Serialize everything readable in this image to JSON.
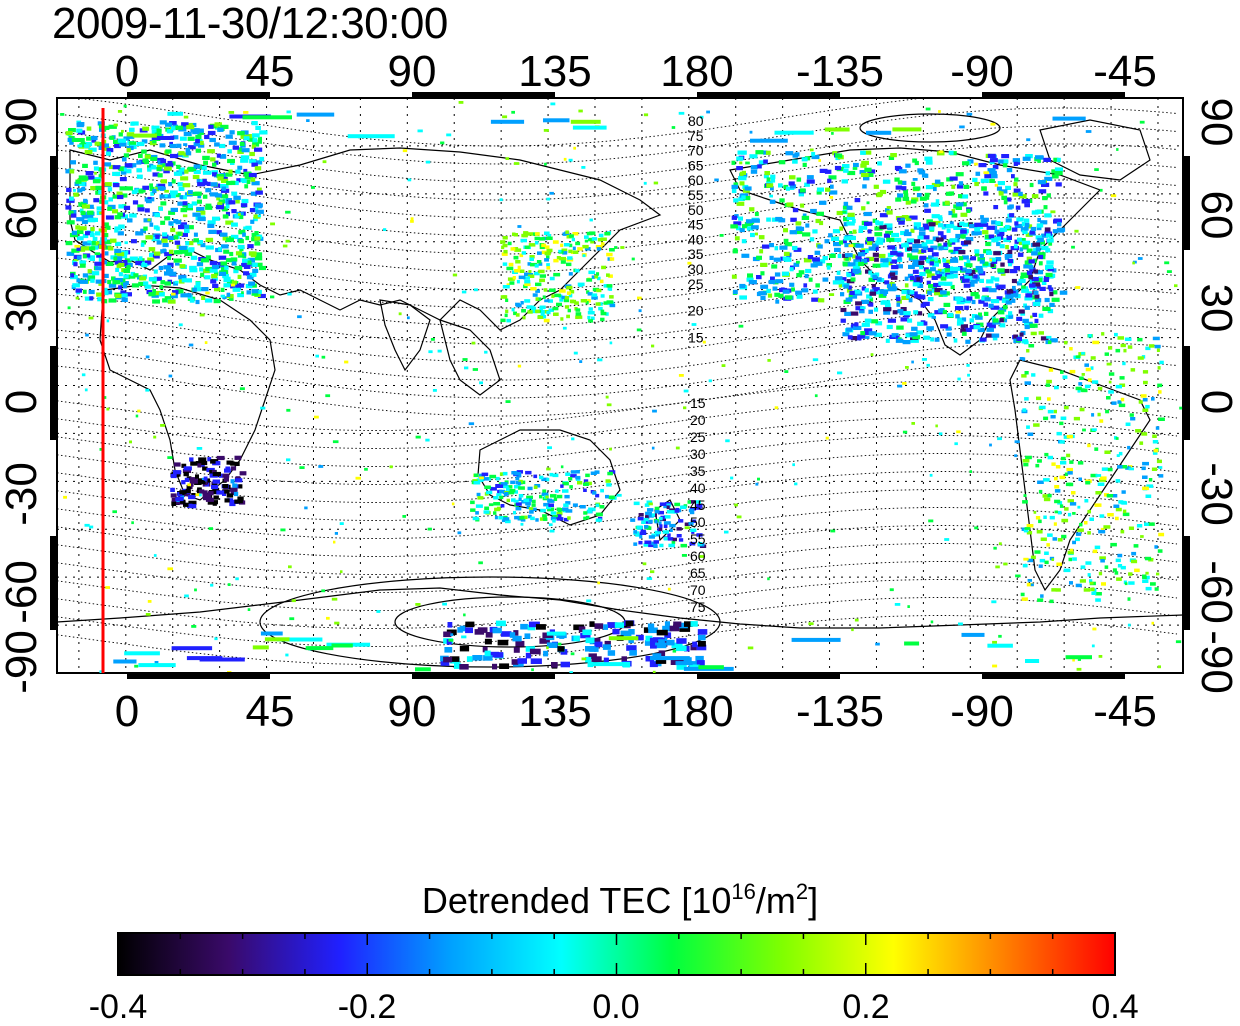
{
  "title": "2009-11-30/12:30:00",
  "map": {
    "lon_labels_top": [
      "0",
      "45",
      "90",
      "135",
      "180",
      "-135",
      "-90",
      "-45"
    ],
    "lon_labels_bottom": [
      "0",
      "45",
      "90",
      "135",
      "180",
      "-135",
      "-90",
      "-45"
    ],
    "lat_labels_left": [
      "90",
      "60",
      "30",
      "0",
      "-30",
      "-60",
      "-90"
    ],
    "lat_labels_right": [
      "90",
      "60",
      "30",
      "0",
      "-30",
      "-60",
      "-90"
    ],
    "contour_labels_north": [
      "80",
      "75",
      "70",
      "65",
      "60",
      "55",
      "50",
      "45",
      "40",
      "35",
      "30",
      "25",
      "20",
      "15"
    ],
    "contour_labels_south": [
      "15",
      "20",
      "25",
      "30",
      "35",
      "40",
      "45",
      "50",
      "55",
      "60",
      "65",
      "70",
      "75"
    ],
    "marker_line_color": "#ff0000",
    "grid": "dotted"
  },
  "colorbar": {
    "title_main": "Detrended TEC  [10",
    "title_exp": "16",
    "title_mid": "/m",
    "title_exp2": "2",
    "title_end": "]",
    "ticks": [
      "-0.4",
      "-0.2",
      "0.0",
      "0.2",
      "0.4"
    ],
    "min": -0.4,
    "max": 0.4,
    "colormap": [
      "#000000",
      "#3a0a6a",
      "#2020ff",
      "#00a0ff",
      "#00ffff",
      "#00ff40",
      "#80ff00",
      "#ffff00",
      "#ff8000",
      "#ff0000"
    ]
  }
}
